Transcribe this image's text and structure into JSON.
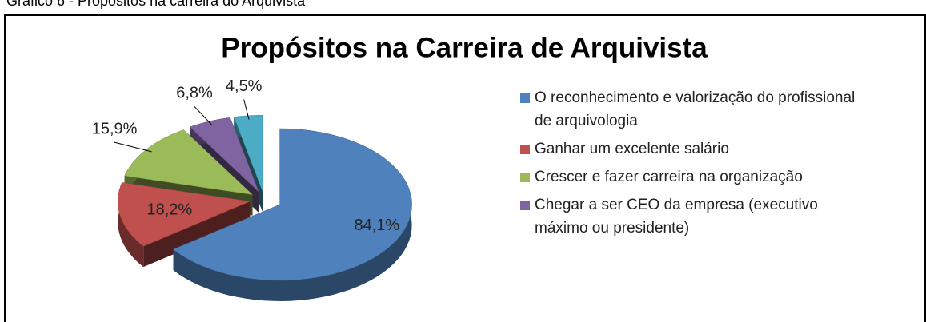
{
  "caption": "Gráfico 6 - Propósitos na carreira do Arquivista",
  "chart_data": {
    "type": "pie3d",
    "title": "Propósitos  na Carreira de Arquivista",
    "categories": [
      "O reconhecimento e valorização do profissional de arquivologia",
      "Ganhar um excelente salário",
      "Crescer e fazer carreira na organização",
      "Chegar a ser CEO da empresa (executivo máximo ou presidente)",
      null
    ],
    "values": [
      84.1,
      18.2,
      15.9,
      6.8,
      4.5
    ],
    "value_labels": [
      "84,1%",
      "18,2%",
      "15,9%",
      "6,8%",
      "4,5%"
    ],
    "colors": [
      "#4f81bd",
      "#c0504d",
      "#9bbb59",
      "#8064a2",
      "#4bacc6"
    ],
    "legend": "right"
  }
}
